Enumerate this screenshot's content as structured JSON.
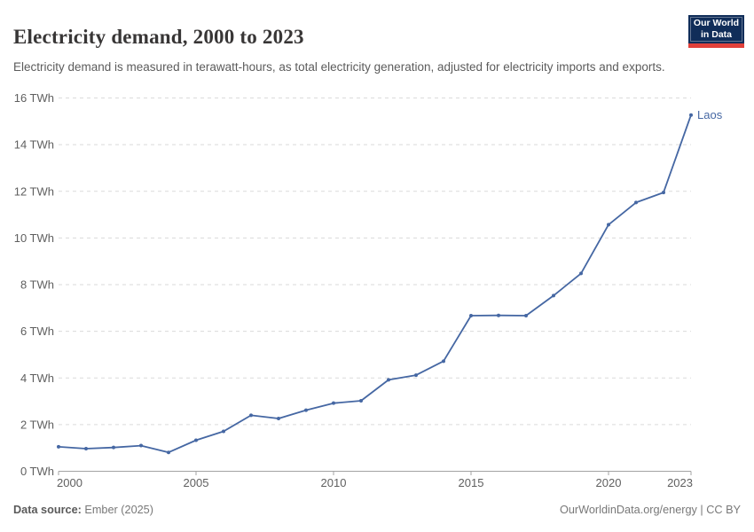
{
  "header": {
    "title": "Electricity demand, 2000 to 2023",
    "subtitle": "Electricity demand is measured in terawatt-hours, as total electricity generation, adjusted for electricity imports and exports.",
    "logo": {
      "line1": "Our World",
      "line2": "in Data",
      "bg_color": "#102d59",
      "accent_color": "#e0403a"
    }
  },
  "footer": {
    "datasource_label": "Data source:",
    "datasource_value": "Ember (2025)",
    "license": "OurWorldinData.org/energy | CC BY"
  },
  "chart_data": {
    "type": "line",
    "title": "Electricity demand, 2000 to 2023",
    "xlabel": "",
    "ylabel": "",
    "unit": "TWh",
    "y_tick_suffix": " TWh",
    "xlim": [
      2000,
      2023
    ],
    "ylim": [
      0,
      16
    ],
    "x_ticks": [
      2000,
      2005,
      2010,
      2015,
      2020,
      2023
    ],
    "y_ticks": [
      0,
      2,
      4,
      6,
      8,
      10,
      12,
      14,
      16
    ],
    "grid": "horizontal-dashed",
    "legend_position": "end-of-line-label",
    "x": [
      2000,
      2001,
      2002,
      2003,
      2004,
      2005,
      2006,
      2007,
      2008,
      2009,
      2010,
      2011,
      2012,
      2013,
      2014,
      2015,
      2016,
      2017,
      2018,
      2019,
      2020,
      2021,
      2022,
      2023
    ],
    "series": [
      {
        "name": "Laos",
        "color": "#4567a3",
        "values": [
          1.05,
          0.97,
          1.02,
          1.1,
          0.81,
          1.33,
          1.71,
          2.4,
          2.26,
          2.62,
          2.92,
          3.02,
          3.92,
          4.12,
          4.72,
          6.67,
          6.68,
          6.67,
          7.53,
          8.48,
          10.57,
          11.52,
          11.95,
          15.27
        ]
      }
    ],
    "colors": {
      "grid": "#dadada",
      "axis": "#a3a3a3",
      "tick_label": "#5f5f5f"
    }
  }
}
